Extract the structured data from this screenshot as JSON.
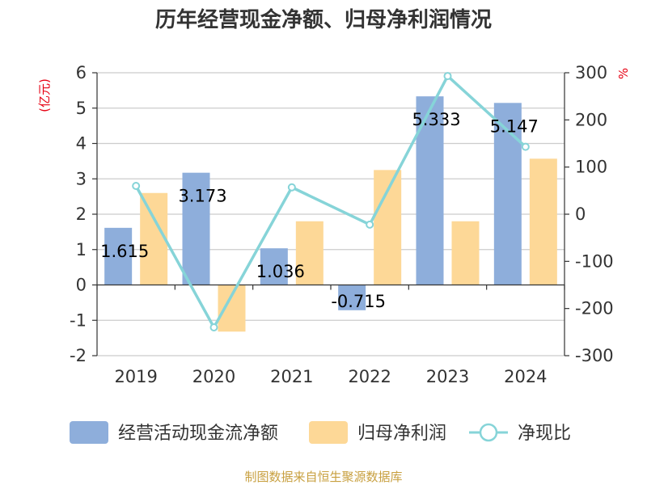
{
  "chart_data": {
    "type": "bar",
    "title": "历年经营现金净额、归母净利润情况",
    "categories": [
      "2019",
      "2020",
      "2021",
      "2022",
      "2023",
      "2024"
    ],
    "series": [
      {
        "name": "经营活动现金流净额",
        "type": "bar",
        "axis": "left",
        "color": "#8eaedb",
        "values": [
          1.615,
          3.173,
          1.036,
          -0.715,
          5.333,
          5.147
        ],
        "labels": [
          "1.615",
          "3.173",
          "1.036",
          "-0.715",
          "5.333",
          "5.147"
        ]
      },
      {
        "name": "归母净利润",
        "type": "bar",
        "axis": "left",
        "color": "#fdd897",
        "values": [
          2.6,
          -1.32,
          1.8,
          3.25,
          1.8,
          3.57
        ]
      },
      {
        "name": "净现比",
        "type": "line",
        "axis": "right",
        "color": "#86d4d8",
        "values": [
          60,
          -240,
          57,
          -22,
          293,
          143
        ]
      }
    ],
    "left_axis": {
      "unit": "(亿元)",
      "ylim": [
        -2,
        6
      ],
      "ticks": [
        "-2",
        "-1",
        "0",
        "1",
        "2",
        "3",
        "4",
        "5",
        "6"
      ]
    },
    "right_axis": {
      "unit": "%",
      "ylim": [
        -300,
        300
      ],
      "ticks": [
        "-300",
        "-200",
        "-100",
        "0",
        "100",
        "200",
        "300"
      ]
    },
    "grid": true,
    "legend_position": "bottom"
  },
  "source": "制图数据来自恒生聚源数据库"
}
